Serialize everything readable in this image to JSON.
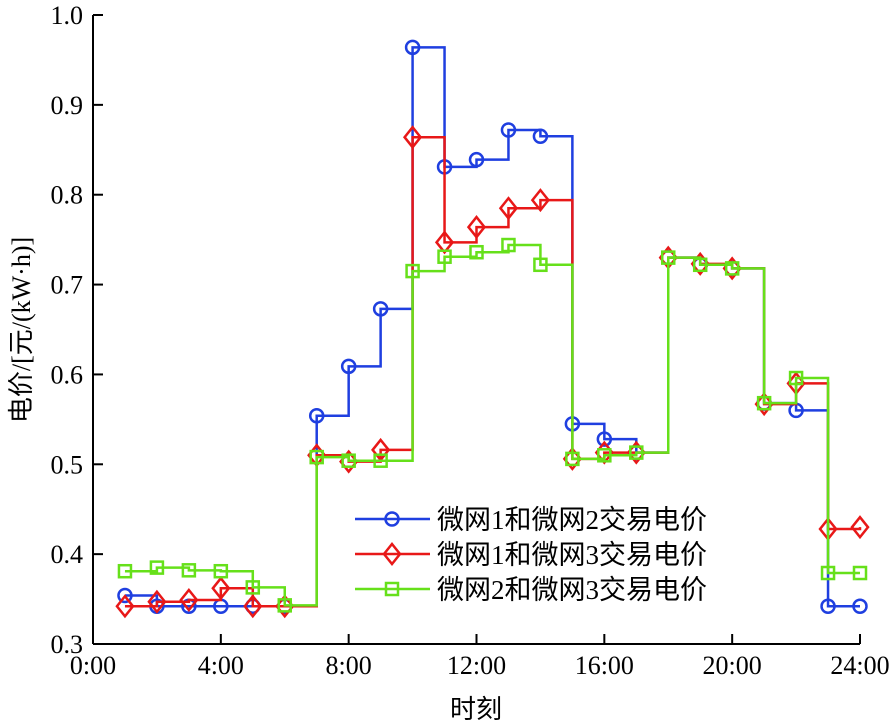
{
  "chart_data": {
    "type": "line",
    "step": "post",
    "xlabel": "时刻",
    "ylabel": "电价/[元/(kW·h)]",
    "xlim": [
      0,
      24
    ],
    "ylim": [
      0.3,
      1.0
    ],
    "xticks": [
      0,
      4,
      8,
      12,
      16,
      20,
      24
    ],
    "xtick_labels": [
      "0:00",
      "4:00",
      "8:00",
      "12:00",
      "16:00",
      "20:00",
      "24:00"
    ],
    "yticks": [
      0.3,
      0.4,
      0.5,
      0.6,
      0.7,
      0.8,
      0.9,
      1.0
    ],
    "ytick_labels": [
      "0.3",
      "0.4",
      "0.5",
      "0.6",
      "0.7",
      "0.8",
      "0.9",
      "1.0"
    ],
    "grid": false,
    "legend_position": "bottom-right",
    "x": [
      1,
      2,
      3,
      4,
      5,
      6,
      7,
      8,
      9,
      10,
      11,
      12,
      13,
      14,
      15,
      16,
      17,
      18,
      19,
      20,
      21,
      22,
      23,
      24
    ],
    "series": [
      {
        "name": "微网1和微网2交易电价",
        "color": "#1f3fe0",
        "marker": "circle",
        "values": [
          0.354,
          0.342,
          0.342,
          0.342,
          0.342,
          0.342,
          0.554,
          0.609,
          0.673,
          0.964,
          0.831,
          0.839,
          0.872,
          0.865,
          0.545,
          0.528,
          0.513,
          0.73,
          0.722,
          0.718,
          0.568,
          0.56,
          0.342,
          0.342
        ]
      },
      {
        "name": "微网1和微网3交易电价",
        "color": "#e81818",
        "marker": "diamond",
        "values": [
          0.342,
          0.347,
          0.349,
          0.362,
          0.342,
          0.342,
          0.51,
          0.503,
          0.516,
          0.864,
          0.747,
          0.764,
          0.785,
          0.794,
          0.506,
          0.513,
          0.513,
          0.73,
          0.723,
          0.718,
          0.567,
          0.59,
          0.428,
          0.43
        ]
      },
      {
        "name": "微网2和微网3交易电价",
        "color": "#66e01a",
        "marker": "square",
        "values": [
          0.381,
          0.385,
          0.382,
          0.381,
          0.363,
          0.343,
          0.508,
          0.504,
          0.504,
          0.715,
          0.731,
          0.736,
          0.744,
          0.722,
          0.506,
          0.51,
          0.513,
          0.73,
          0.722,
          0.718,
          0.568,
          0.596,
          0.379,
          0.379
        ]
      }
    ]
  }
}
